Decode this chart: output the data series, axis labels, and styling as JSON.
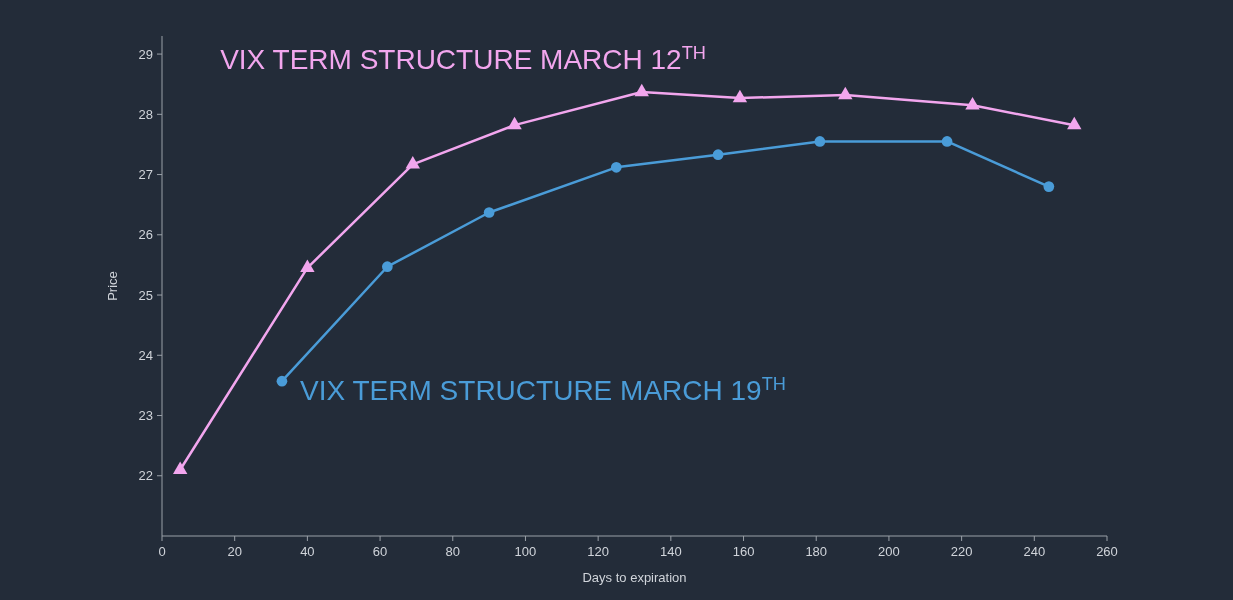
{
  "chart_data": {
    "type": "line",
    "xlabel": "Days to expiration",
    "ylabel": "Price",
    "xlim": [
      0,
      260
    ],
    "ylim": [
      21,
      29.3
    ],
    "xticks": [
      0,
      20,
      40,
      60,
      80,
      100,
      120,
      140,
      160,
      180,
      200,
      220,
      240,
      260
    ],
    "yticks": [
      22,
      23,
      24,
      25,
      26,
      27,
      28,
      29
    ],
    "grid": false,
    "line_style": "solid",
    "series": [
      {
        "name": "VIX TERM STRUCTURE MARCH 12$^{TH}$",
        "color": "#f2a6ee",
        "marker": "triangle",
        "x": [
          5,
          40,
          69,
          97,
          132,
          159,
          188,
          223,
          251
        ],
        "values": [
          22.1,
          25.45,
          27.17,
          27.82,
          28.37,
          28.27,
          28.32,
          28.15,
          27.82
        ]
      },
      {
        "name": "VIX TERM STRUCTURE MARCH 19$^{TH}$",
        "color": "#4a9cd8",
        "marker": "circle",
        "x": [
          33,
          62,
          90,
          125,
          153,
          181,
          216,
          244
        ],
        "values": [
          23.57,
          25.47,
          26.37,
          27.12,
          27.33,
          27.55,
          27.55,
          26.8
        ]
      }
    ]
  }
}
